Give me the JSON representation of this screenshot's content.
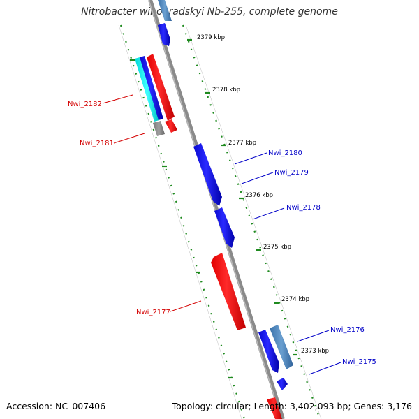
{
  "map": {
    "title": "Nitrobacter winogradskyi Nb-255, complete genome",
    "accession_text": "Accession: NC_007406",
    "summary_text": "Topology: circular; Length: 3,402,093 bp; Genes: 3,176"
  },
  "ticks": [
    {
      "id": "2379",
      "label": "2379 kbp"
    },
    {
      "id": "2378",
      "label": "2378 kbp"
    },
    {
      "id": "2377",
      "label": "2377 kbp"
    },
    {
      "id": "2376",
      "label": "2376 kbp"
    },
    {
      "id": "2375",
      "label": "2375 kbp"
    },
    {
      "id": "2374",
      "label": "2374 kbp"
    },
    {
      "id": "2373",
      "label": "2373 kbp"
    }
  ],
  "genes": [
    {
      "id": "nwi-2182",
      "label": "Nwi_2182",
      "color": "#d40000"
    },
    {
      "id": "nwi-2181",
      "label": "Nwi_2181",
      "color": "#d40000"
    },
    {
      "id": "nwi-2180",
      "label": "Nwi_2180",
      "color": "#0000c8"
    },
    {
      "id": "nwi-2179",
      "label": "Nwi_2179",
      "color": "#0000c8"
    },
    {
      "id": "nwi-2178",
      "label": "Nwi_2178",
      "color": "#0000c8"
    },
    {
      "id": "nwi-2177",
      "label": "Nwi_2177",
      "color": "#d40000"
    },
    {
      "id": "nwi-2176",
      "label": "Nwi_2176",
      "color": "#0000c8"
    },
    {
      "id": "nwi-2175",
      "label": "Nwi_2175",
      "color": "#0000c8"
    }
  ],
  "colors": {
    "forward_cds": "#1a1aff",
    "reverse_cds": "#ff1a1a",
    "trna": "#00e5e5",
    "misc_feature": "#4f86bd",
    "backbone": "#8a8a8a",
    "tick_marks": "#1f8a1f"
  }
}
